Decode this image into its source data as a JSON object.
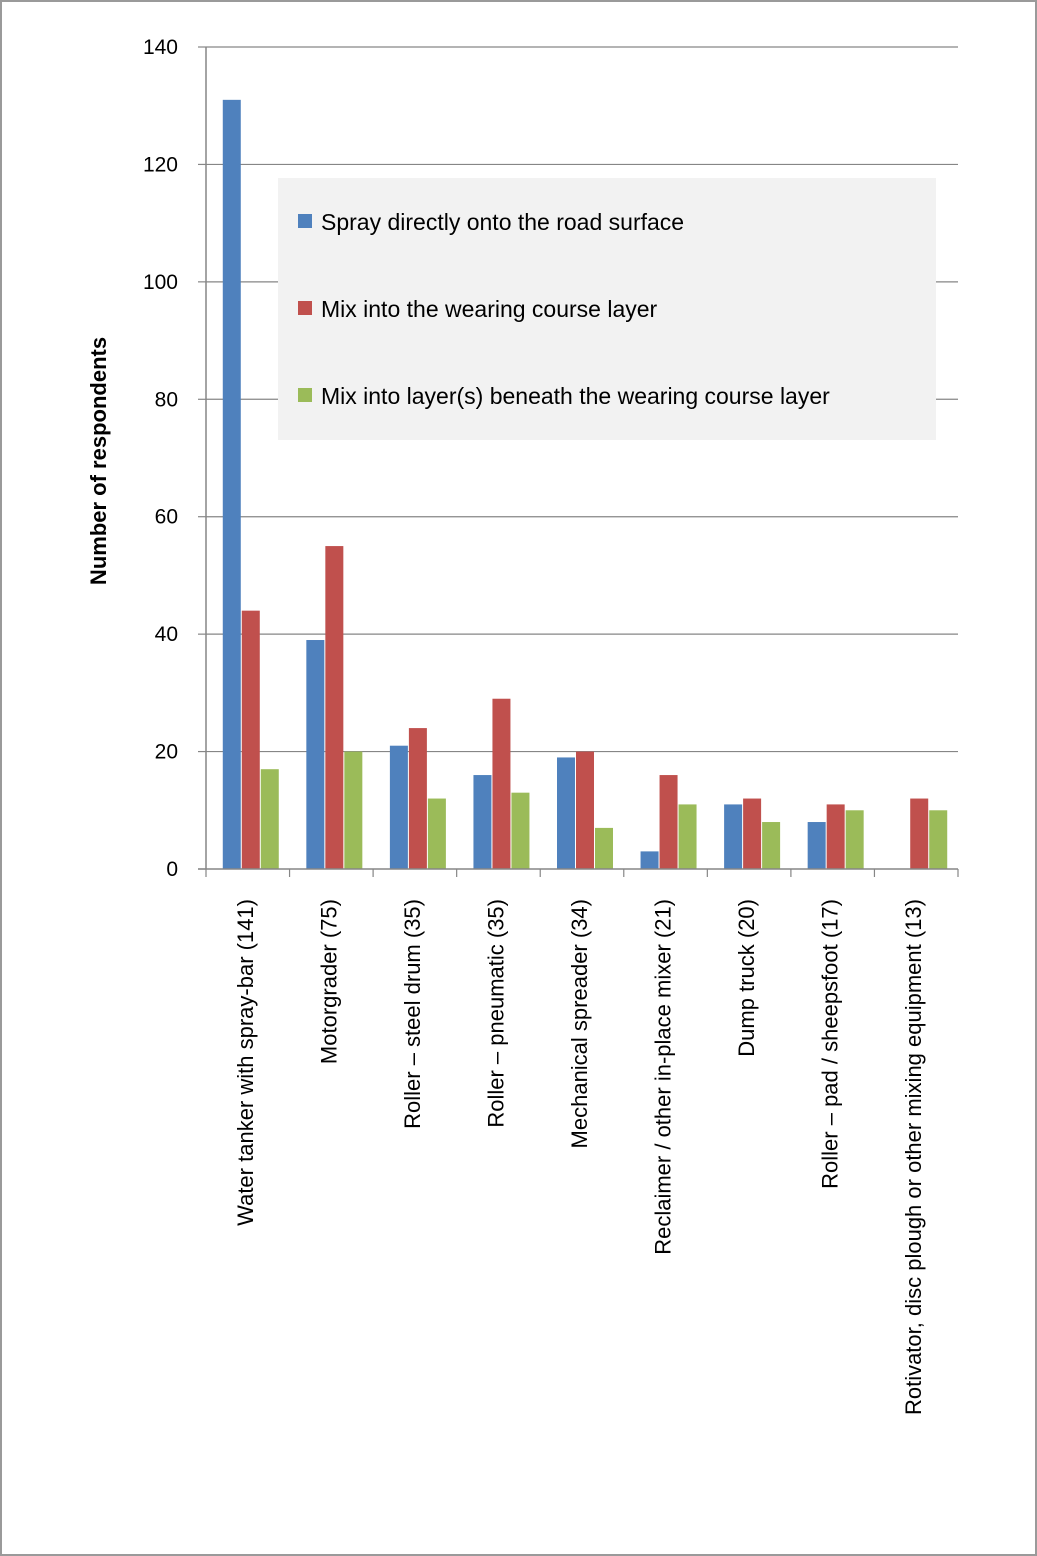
{
  "chart_data": {
    "type": "bar",
    "title": "",
    "xlabel": "",
    "ylabel": "Number of respondents",
    "ylim": [
      0,
      140
    ],
    "yticks": [
      0,
      20,
      40,
      60,
      80,
      100,
      120,
      140
    ],
    "grid": true,
    "legend_position": "top-right",
    "categories": [
      "Water tanker with spray-bar (141)",
      "Motorgrader (75)",
      "Roller – steel drum (35)",
      "Roller – pneumatic (35)",
      "Mechanical spreader (34)",
      "Reclaimer / other in-place mixer (21)",
      "Dump truck (20)",
      "Roller – pad / sheepsfoot (17)",
      "Rotivator, disc plough or other mixing equipment (13)"
    ],
    "series": [
      {
        "name": "Spray directly onto the road surface",
        "color": "#4F81BD",
        "values": [
          131,
          39,
          21,
          16,
          19,
          3,
          11,
          8,
          0
        ]
      },
      {
        "name": "Mix into the wearing course layer",
        "color": "#C0504D",
        "values": [
          44,
          55,
          24,
          29,
          20,
          16,
          12,
          11,
          12
        ]
      },
      {
        "name": "Mix into layer(s) beneath the wearing course layer",
        "color": "#9BBB59",
        "values": [
          17,
          20,
          12,
          13,
          7,
          11,
          8,
          10,
          10
        ]
      }
    ]
  }
}
